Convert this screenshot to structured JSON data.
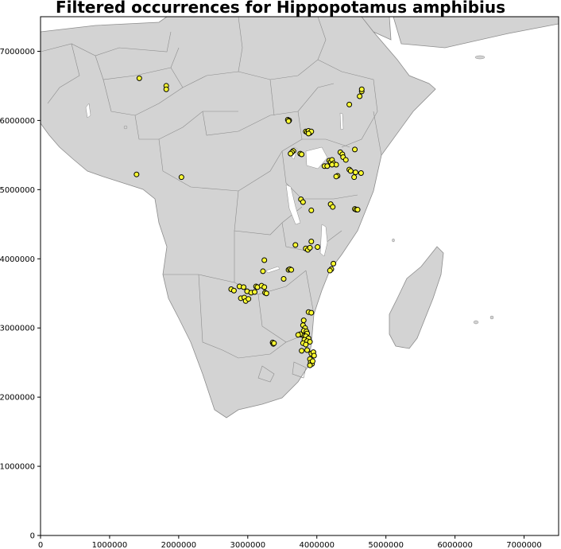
{
  "title": "Filtered occurrences for Hippopotamus amphibius",
  "colors": {
    "land": "#d3d3d3",
    "border": "#8c8c8c",
    "marker_fill": "#ffff33",
    "marker_edge": "#000000",
    "background": "#ffffff"
  },
  "chart_data": {
    "type": "scatter",
    "title": "Filtered occurrences for Hippopotamus amphibius",
    "xlim": [
      0,
      7500000
    ],
    "ylim": [
      0,
      7500000
    ],
    "xticks": [
      "0",
      "1000000",
      "2000000",
      "3000000",
      "4000000",
      "5000000",
      "6000000",
      "7000000"
    ],
    "yticks": [
      "0",
      "1000000",
      "2000000",
      "3000000",
      "4000000",
      "5000000",
      "6000000",
      "7000000"
    ],
    "grid": false,
    "points": [
      [
        1430000,
        6610000
      ],
      [
        1820000,
        6500000
      ],
      [
        1820000,
        6450000
      ],
      [
        1390000,
        5220000
      ],
      [
        2040000,
        5180000
      ],
      [
        4470000,
        6230000
      ],
      [
        4620000,
        6350000
      ],
      [
        4650000,
        6420000
      ],
      [
        4650000,
        6450000
      ],
      [
        3580000,
        6010000
      ],
      [
        3600000,
        6000000
      ],
      [
        3590000,
        5990000
      ],
      [
        3840000,
        5840000
      ],
      [
        3860000,
        5830000
      ],
      [
        3880000,
        5850000
      ],
      [
        3900000,
        5820000
      ],
      [
        3920000,
        5840000
      ],
      [
        3880000,
        5810000
      ],
      [
        3660000,
        5560000
      ],
      [
        3640000,
        5540000
      ],
      [
        3620000,
        5520000
      ],
      [
        3760000,
        5520000
      ],
      [
        3780000,
        5510000
      ],
      [
        4110000,
        5340000
      ],
      [
        4150000,
        5340000
      ],
      [
        4180000,
        5420000
      ],
      [
        4200000,
        5400000
      ],
      [
        4220000,
        5430000
      ],
      [
        4240000,
        5380000
      ],
      [
        4280000,
        5360000
      ],
      [
        4220000,
        5360000
      ],
      [
        4300000,
        5200000
      ],
      [
        4280000,
        5190000
      ],
      [
        4340000,
        5540000
      ],
      [
        4370000,
        5510000
      ],
      [
        4380000,
        5470000
      ],
      [
        4420000,
        5430000
      ],
      [
        4550000,
        5580000
      ],
      [
        4470000,
        5290000
      ],
      [
        4490000,
        5270000
      ],
      [
        4560000,
        5250000
      ],
      [
        4540000,
        5180000
      ],
      [
        4640000,
        5240000
      ],
      [
        4550000,
        4720000
      ],
      [
        4570000,
        4710000
      ],
      [
        4590000,
        4710000
      ],
      [
        3770000,
        4860000
      ],
      [
        3800000,
        4820000
      ],
      [
        4200000,
        4790000
      ],
      [
        4230000,
        4750000
      ],
      [
        3920000,
        4700000
      ],
      [
        3690000,
        4200000
      ],
      [
        3840000,
        4150000
      ],
      [
        3870000,
        4130000
      ],
      [
        3900000,
        4160000
      ],
      [
        3920000,
        4250000
      ],
      [
        4010000,
        4170000
      ],
      [
        4240000,
        3930000
      ],
      [
        4210000,
        3850000
      ],
      [
        4190000,
        3830000
      ],
      [
        3240000,
        3980000
      ],
      [
        3220000,
        3820000
      ],
      [
        3520000,
        3710000
      ],
      [
        3590000,
        3840000
      ],
      [
        3610000,
        3850000
      ],
      [
        3630000,
        3840000
      ],
      [
        2760000,
        3560000
      ],
      [
        2800000,
        3540000
      ],
      [
        2880000,
        3600000
      ],
      [
        2940000,
        3590000
      ],
      [
        2990000,
        3530000
      ],
      [
        3050000,
        3510000
      ],
      [
        3120000,
        3600000
      ],
      [
        3140000,
        3590000
      ],
      [
        3200000,
        3610000
      ],
      [
        3240000,
        3590000
      ],
      [
        2900000,
        3430000
      ],
      [
        2950000,
        3440000
      ],
      [
        2970000,
        3390000
      ],
      [
        3010000,
        3420000
      ],
      [
        3100000,
        3520000
      ],
      [
        3250000,
        3510000
      ],
      [
        3270000,
        3500000
      ],
      [
        3880000,
        3230000
      ],
      [
        3920000,
        3220000
      ],
      [
        3810000,
        3110000
      ],
      [
        3800000,
        3040000
      ],
      [
        3830000,
        3000000
      ],
      [
        3810000,
        2960000
      ],
      [
        3850000,
        2950000
      ],
      [
        3860000,
        2920000
      ],
      [
        3780000,
        2900000
      ],
      [
        3760000,
        2910000
      ],
      [
        3730000,
        2900000
      ],
      [
        3840000,
        2880000
      ],
      [
        3880000,
        2850000
      ],
      [
        3820000,
        2830000
      ],
      [
        3860000,
        2810000
      ],
      [
        3800000,
        2780000
      ],
      [
        3840000,
        2760000
      ],
      [
        3900000,
        2800000
      ],
      [
        3360000,
        2790000
      ],
      [
        3370000,
        2770000
      ],
      [
        3380000,
        2780000
      ],
      [
        3780000,
        2670000
      ],
      [
        3860000,
        2680000
      ],
      [
        3920000,
        2630000
      ],
      [
        3950000,
        2650000
      ],
      [
        3960000,
        2600000
      ],
      [
        3900000,
        2550000
      ],
      [
        3910000,
        2500000
      ],
      [
        3930000,
        2480000
      ],
      [
        3900000,
        2460000
      ],
      [
        3940000,
        2520000
      ]
    ]
  }
}
